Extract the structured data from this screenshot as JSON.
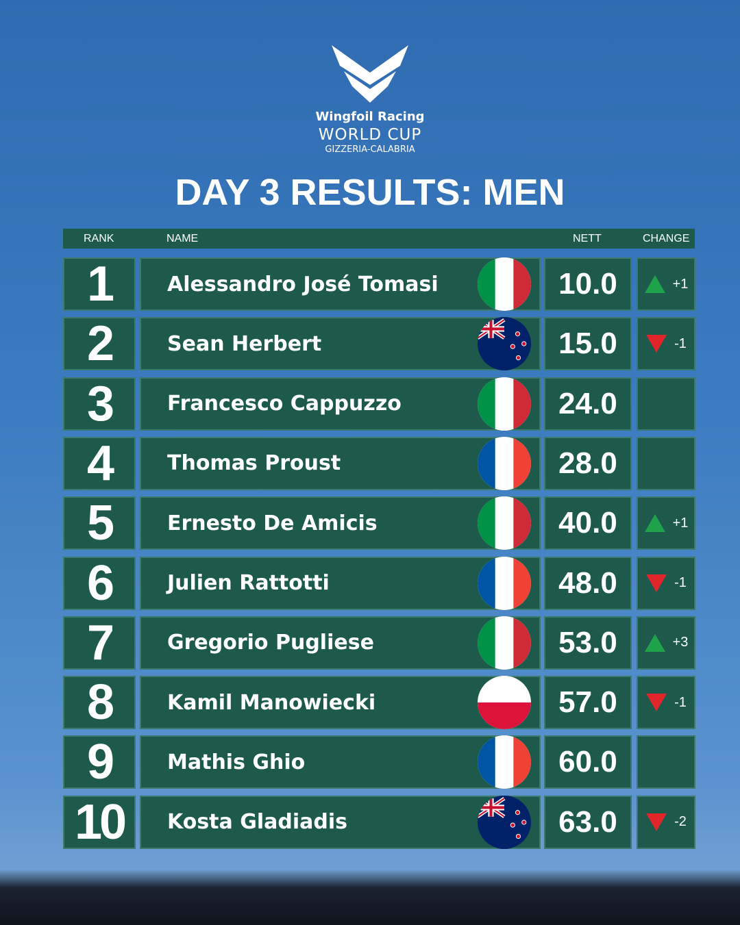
{
  "header": {
    "logo_line1": "Wingfoil Racing",
    "logo_line2": "WORLD CUP",
    "logo_line3": "GIZZERIA-CALABRIA",
    "title": "DAY 3 RESULTS: MEN"
  },
  "table": {
    "columns": [
      "RANK",
      "NAME",
      "NETT",
      "CHANGE"
    ],
    "rows": [
      {
        "rank": 1,
        "name": "Alessandro José Tomasi",
        "flag": "italy",
        "nett": "10.0",
        "change": "+1"
      },
      {
        "rank": 2,
        "name": "Sean Herbert",
        "flag": "new-zealand",
        "nett": "15.0",
        "change": "-1"
      },
      {
        "rank": 3,
        "name": "Francesco Cappuzzo",
        "flag": "italy",
        "nett": "24.0"
      },
      {
        "rank": 4,
        "name": "Thomas Proust",
        "flag": "france",
        "nett": "28.0"
      },
      {
        "rank": 5,
        "name": "Ernesto De Amicis",
        "flag": "italy",
        "nett": "40.0",
        "change": "+1"
      },
      {
        "rank": 6,
        "name": "Julien Rattotti",
        "flag": "france",
        "nett": "48.0",
        "change": "-1"
      },
      {
        "rank": 7,
        "name": "Gregorio Pugliese",
        "flag": "italy",
        "nett": "53.0",
        "change": "+3"
      },
      {
        "rank": 8,
        "name": "Kamil Manowiecki",
        "flag": "poland",
        "nett": "57.0",
        "change": "-1"
      },
      {
        "rank": 9,
        "name": "Mathis Ghio",
        "flag": "france",
        "nett": "60.0"
      },
      {
        "rank": 10,
        "name": "Kosta Gladiadis",
        "flag": "new-zealand",
        "nett": "63.0",
        "change": "-2"
      }
    ]
  }
}
